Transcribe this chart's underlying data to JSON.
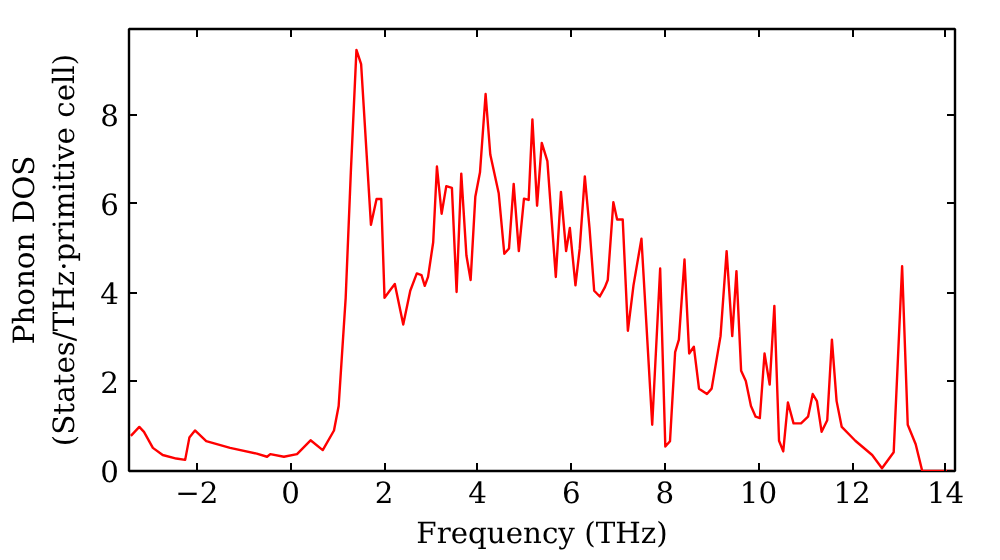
{
  "chart_data": {
    "type": "line",
    "xlabel": "Frequency (THz)",
    "ylabel": "Phonon DOS\n(States/THz·primitive cell)",
    "xlim": [
      -3.45,
      14.2
    ],
    "ylim": [
      0,
      9.93
    ],
    "xticks": [
      {
        "value": -2,
        "label": "−2"
      },
      0,
      2,
      4,
      6,
      8,
      10,
      12,
      14
    ],
    "yticks": [
      0,
      2,
      4,
      6,
      8
    ],
    "grid": false,
    "marker": "none",
    "line_style": "solid",
    "series": [
      {
        "color": "#ff0000",
        "x": [
          -3.41,
          -3.23,
          -3.13,
          -2.94,
          -2.73,
          -2.44,
          -2.25,
          -2.16,
          -2.04,
          -1.8,
          -1.29,
          -0.72,
          -0.5,
          -0.43,
          -0.14,
          0.14,
          0.43,
          0.69,
          0.93,
          1.03,
          1.18,
          1.29,
          1.41,
          1.51,
          1.72,
          1.84,
          1.94,
          2.01,
          2.12,
          2.23,
          2.41,
          2.56,
          2.7,
          2.8,
          2.87,
          2.94,
          3.05,
          3.13,
          3.23,
          3.33,
          3.45,
          3.55,
          3.65,
          3.76,
          3.85,
          3.95,
          4.05,
          4.17,
          4.27,
          4.45,
          4.57,
          4.67,
          4.77,
          4.88,
          4.99,
          5.09,
          5.17,
          5.27,
          5.37,
          5.49,
          5.67,
          5.78,
          5.89,
          5.97,
          6.09,
          6.18,
          6.29,
          6.39,
          6.49,
          6.61,
          6.72,
          6.78,
          6.9,
          6.98,
          7.1,
          7.21,
          7.33,
          7.5,
          7.73,
          7.9,
          8.01,
          8.11,
          8.22,
          8.3,
          8.42,
          8.52,
          8.62,
          8.73,
          8.9,
          9.0,
          9.19,
          9.32,
          9.44,
          9.53,
          9.63,
          9.73,
          9.84,
          9.94,
          10.03,
          10.13,
          10.24,
          10.34,
          10.44,
          10.53,
          10.63,
          10.75,
          10.91,
          11.06,
          11.16,
          11.25,
          11.35,
          11.47,
          11.57,
          11.67,
          11.78,
          12.07,
          12.43,
          12.64,
          12.89,
          13.07,
          13.19,
          13.36,
          13.5,
          14.15
        ],
        "values": [
          0.79,
          0.99,
          0.88,
          0.52,
          0.36,
          0.28,
          0.25,
          0.75,
          0.91,
          0.67,
          0.52,
          0.39,
          0.32,
          0.38,
          0.32,
          0.38,
          0.69,
          0.47,
          0.91,
          1.46,
          3.89,
          6.71,
          9.46,
          9.14,
          5.53,
          6.11,
          6.11,
          3.89,
          4.05,
          4.2,
          3.29,
          4.05,
          4.44,
          4.4,
          4.16,
          4.36,
          5.14,
          6.84,
          5.78,
          6.4,
          6.36,
          4.02,
          6.68,
          4.84,
          4.29,
          6.16,
          6.71,
          8.47,
          7.11,
          6.24,
          4.88,
          5.0,
          6.45,
          4.94,
          6.12,
          6.09,
          7.9,
          5.96,
          7.37,
          6.96,
          4.36,
          6.27,
          4.94,
          5.46,
          4.17,
          4.99,
          6.62,
          5.46,
          4.05,
          3.92,
          4.13,
          4.29,
          6.04,
          5.65,
          5.65,
          3.15,
          4.17,
          5.22,
          1.04,
          4.55,
          0.55,
          0.67,
          2.67,
          2.95,
          4.75,
          2.64,
          2.79,
          1.85,
          1.73,
          1.85,
          3.03,
          4.94,
          3.03,
          4.49,
          2.25,
          2.02,
          1.46,
          1.22,
          1.19,
          2.64,
          1.94,
          3.71,
          0.68,
          0.44,
          1.54,
          1.07,
          1.07,
          1.22,
          1.73,
          1.57,
          0.88,
          1.14,
          2.95,
          1.57,
          0.99,
          0.68,
          0.36,
          0.06,
          0.42,
          4.6,
          1.04,
          0.6,
          0.0,
          0.0
        ]
      }
    ]
  }
}
